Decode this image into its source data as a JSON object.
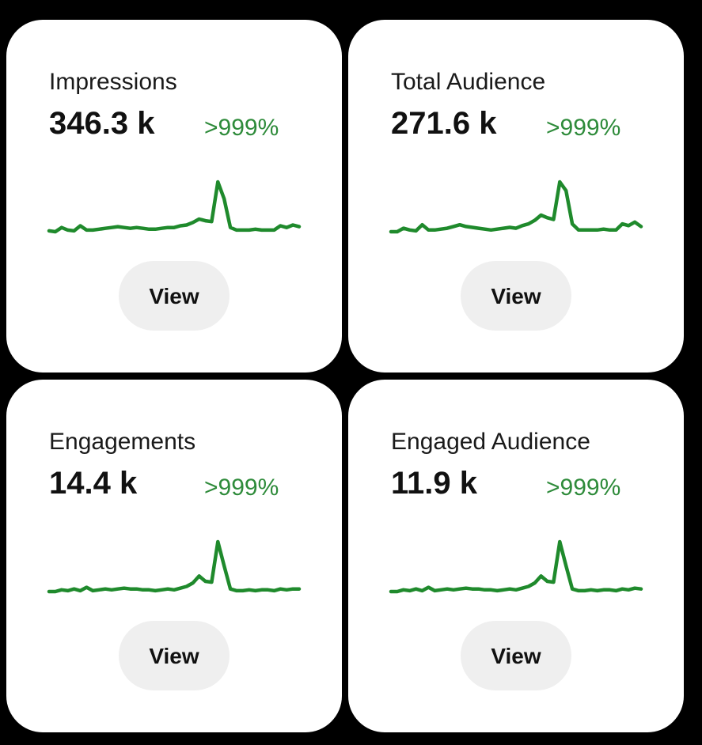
{
  "cards": [
    {
      "title": "Impressions",
      "value": "346.3 k",
      "change": ">999%",
      "button": "View",
      "trend": [
        2,
        1,
        6,
        3,
        2,
        8,
        3,
        3,
        4,
        5,
        6,
        7,
        6,
        5,
        6,
        5,
        4,
        4,
        5,
        6,
        6,
        8,
        9,
        12,
        16,
        14,
        13,
        60,
        40,
        6,
        3,
        3,
        3,
        4,
        3,
        3,
        3,
        8,
        6,
        9,
        7
      ]
    },
    {
      "title": "Total Audience",
      "value": "271.6 k",
      "change": ">999%",
      "button": "View",
      "trend": [
        1,
        1,
        5,
        3,
        2,
        9,
        3,
        3,
        4,
        5,
        7,
        9,
        7,
        6,
        5,
        4,
        3,
        4,
        5,
        6,
        5,
        8,
        10,
        14,
        20,
        17,
        15,
        58,
        48,
        10,
        3,
        3,
        3,
        3,
        4,
        3,
        3,
        10,
        8,
        12,
        7
      ]
    },
    {
      "title": "Engagements",
      "value": "14.4 k",
      "change": ">999%",
      "button": "View",
      "trend": [
        2,
        2,
        4,
        3,
        5,
        3,
        7,
        3,
        4,
        5,
        4,
        5,
        6,
        5,
        5,
        4,
        4,
        3,
        4,
        5,
        4,
        6,
        8,
        12,
        20,
        14,
        13,
        60,
        32,
        5,
        3,
        3,
        4,
        3,
        4,
        4,
        3,
        5,
        4,
        5,
        5
      ]
    },
    {
      "title": "Engaged Audience",
      "value": "11.9 k",
      "change": ">999%",
      "button": "View",
      "trend": [
        2,
        2,
        4,
        3,
        5,
        3,
        7,
        3,
        4,
        5,
        4,
        5,
        6,
        5,
        5,
        4,
        4,
        3,
        4,
        5,
        4,
        6,
        8,
        12,
        20,
        14,
        13,
        60,
        32,
        5,
        3,
        3,
        4,
        3,
        4,
        4,
        3,
        5,
        4,
        6,
        5
      ]
    }
  ]
}
